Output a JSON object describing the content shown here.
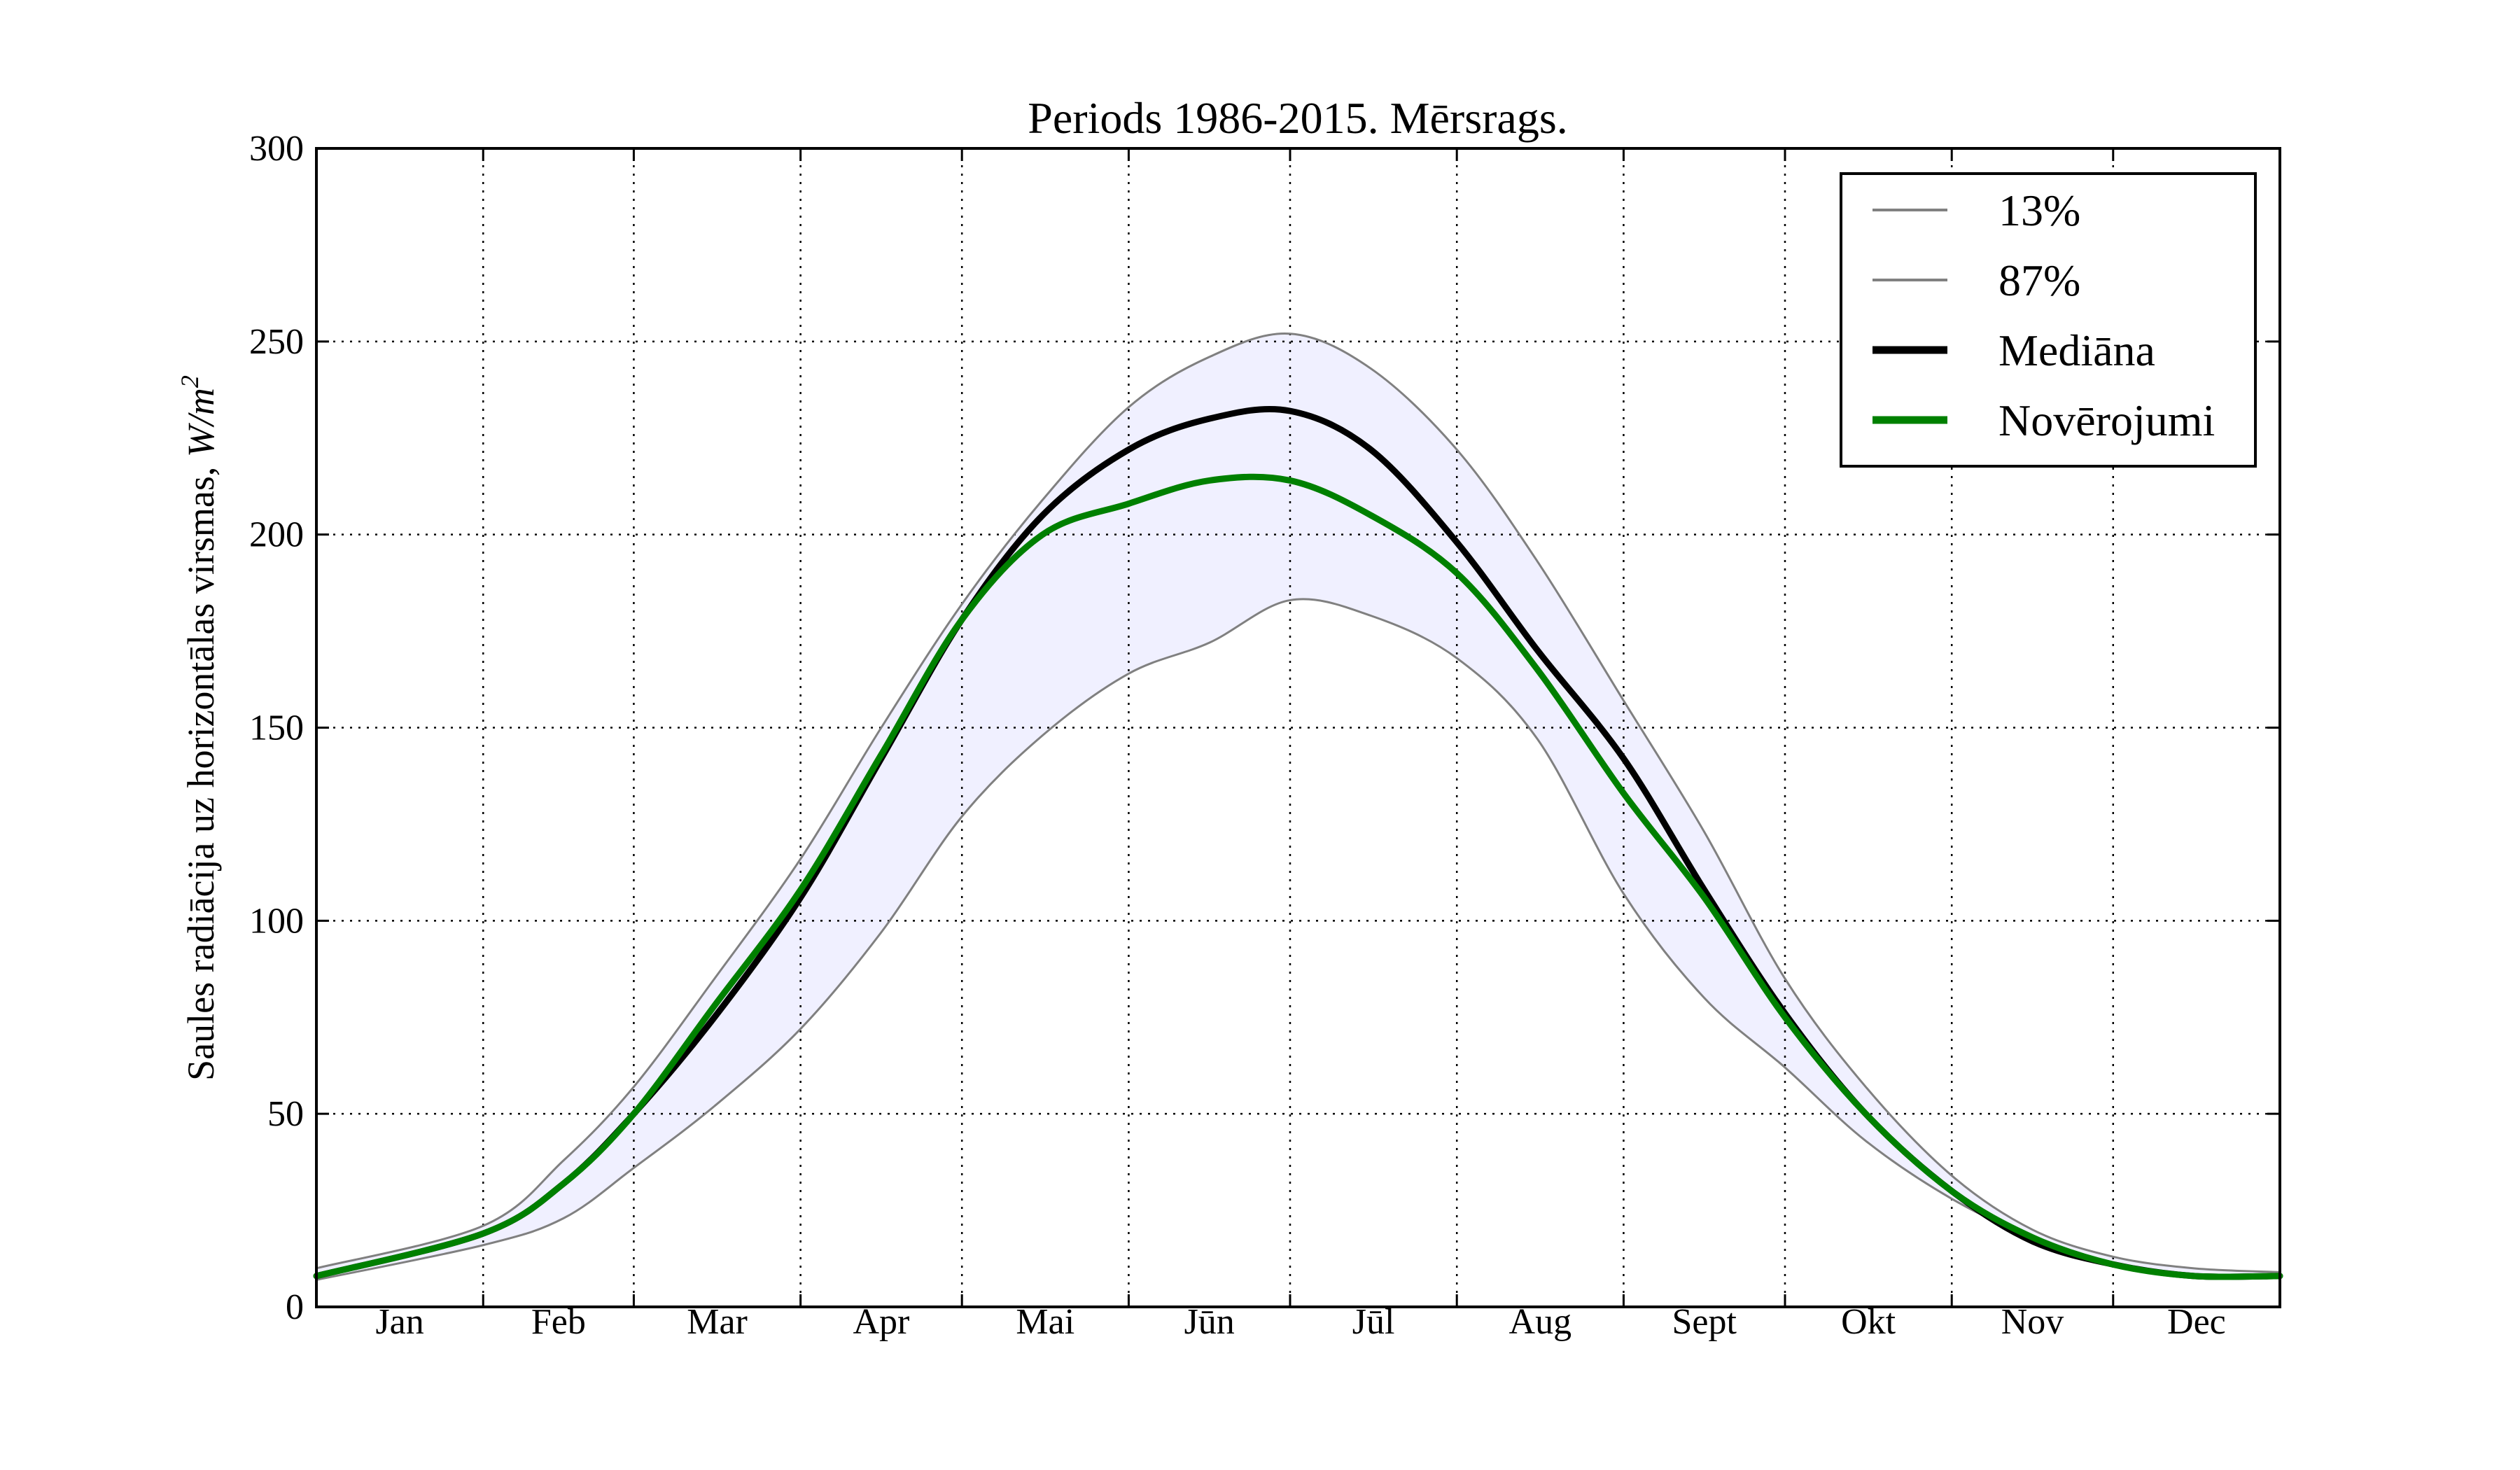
{
  "chart_data": {
    "type": "line",
    "title": "Periods 1986-2015. Mērsrags.",
    "xlabel": "",
    "ylabel": "Saules radiācija uz horizontālas virsmas, ",
    "ylabel_unit": "W/m",
    "ylabel_unit_exp": "2",
    "xlim": [
      0,
      365
    ],
    "ylim": [
      0,
      300
    ],
    "yticks": [
      0,
      50,
      100,
      150,
      200,
      250,
      300
    ],
    "month_boundaries_day": [
      31,
      59,
      90,
      120,
      151,
      181,
      212,
      243,
      273,
      304,
      334
    ],
    "month_labels": [
      "Jan",
      "Feb",
      "Mar",
      "Apr",
      "Mai",
      "Jūn",
      "Jūl",
      "Aug",
      "Sept",
      "Okt",
      "Nov",
      "Dec"
    ],
    "grid": true,
    "legend_position": "top-right",
    "x_day": [
      0,
      31,
      46,
      59,
      74,
      90,
      105,
      120,
      135,
      151,
      166,
      181,
      196,
      212,
      227,
      243,
      258,
      273,
      288,
      304,
      319,
      334,
      349,
      365
    ],
    "band_fill": "#f0f0ff",
    "series": [
      {
        "name": "13%",
        "color": "#808080",
        "width": 3,
        "values": [
          7,
          16,
          23,
          36,
          52,
          72,
          97,
          127,
          148,
          164,
          172,
          183,
          179,
          168,
          147,
          107,
          80,
          62,
          43,
          28,
          18,
          11,
          8,
          8
        ]
      },
      {
        "name": "87%",
        "color": "#808080",
        "width": 3,
        "values": [
          10,
          21,
          38,
          57,
          85,
          116,
          150,
          182,
          209,
          233,
          246,
          252,
          243,
          222,
          193,
          157,
          123,
          85,
          57,
          34,
          20,
          13,
          10,
          9
        ]
      },
      {
        "name": "Mediāna",
        "color": "#000000",
        "width": 9,
        "values": [
          8,
          19,
          32,
          50,
          75,
          106,
          142,
          178,
          205,
          222,
          230,
          232,
          222,
          198,
          170,
          142,
          108,
          76,
          50,
          30,
          17,
          11,
          8,
          8
        ]
      },
      {
        "name": "Novērojumi",
        "color": "#008000",
        "width": 9,
        "values": [
          8,
          19,
          32,
          50,
          78,
          108,
          143,
          178,
          200,
          208,
          214,
          214,
          205,
          190,
          165,
          133,
          106,
          75,
          50,
          30,
          18,
          11,
          8,
          8
        ]
      }
    ]
  }
}
